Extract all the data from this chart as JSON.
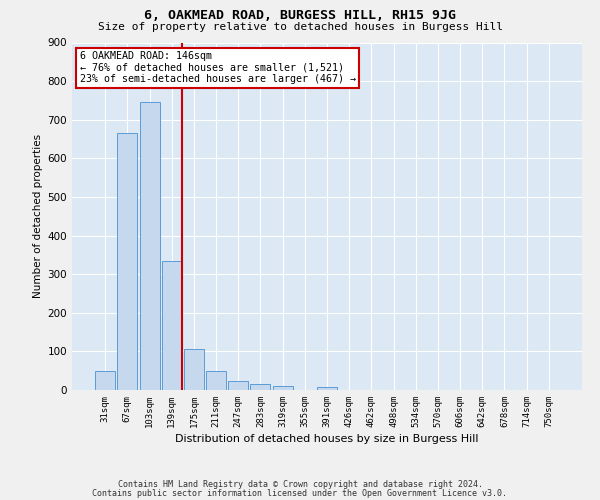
{
  "title": "6, OAKMEAD ROAD, BURGESS HILL, RH15 9JG",
  "subtitle": "Size of property relative to detached houses in Burgess Hill",
  "xlabel": "Distribution of detached houses by size in Burgess Hill",
  "ylabel": "Number of detached properties",
  "bar_color": "#c5d8ed",
  "bar_edge_color": "#5b9bd5",
  "background_color": "#dce9f5",
  "grid_color": "#ffffff",
  "fig_background": "#f0f0f0",
  "categories": [
    "31sqm",
    "67sqm",
    "103sqm",
    "139sqm",
    "175sqm",
    "211sqm",
    "247sqm",
    "283sqm",
    "319sqm",
    "355sqm",
    "391sqm",
    "426sqm",
    "462sqm",
    "498sqm",
    "534sqm",
    "570sqm",
    "606sqm",
    "642sqm",
    "678sqm",
    "714sqm",
    "750sqm"
  ],
  "values": [
    50,
    665,
    747,
    335,
    105,
    50,
    24,
    15,
    10,
    0,
    8,
    0,
    0,
    0,
    0,
    0,
    0,
    0,
    0,
    0,
    0
  ],
  "ylim": [
    0,
    900
  ],
  "yticks": [
    0,
    100,
    200,
    300,
    400,
    500,
    600,
    700,
    800,
    900
  ],
  "subject_line_color": "#cc0000",
  "annotation_text": "6 OAKMEAD ROAD: 146sqm\n← 76% of detached houses are smaller (1,521)\n23% of semi-detached houses are larger (467) →",
  "annotation_box_color": "#ffffff",
  "annotation_box_edge_color": "#cc0000",
  "footer_line1": "Contains HM Land Registry data © Crown copyright and database right 2024.",
  "footer_line2": "Contains public sector information licensed under the Open Government Licence v3.0."
}
